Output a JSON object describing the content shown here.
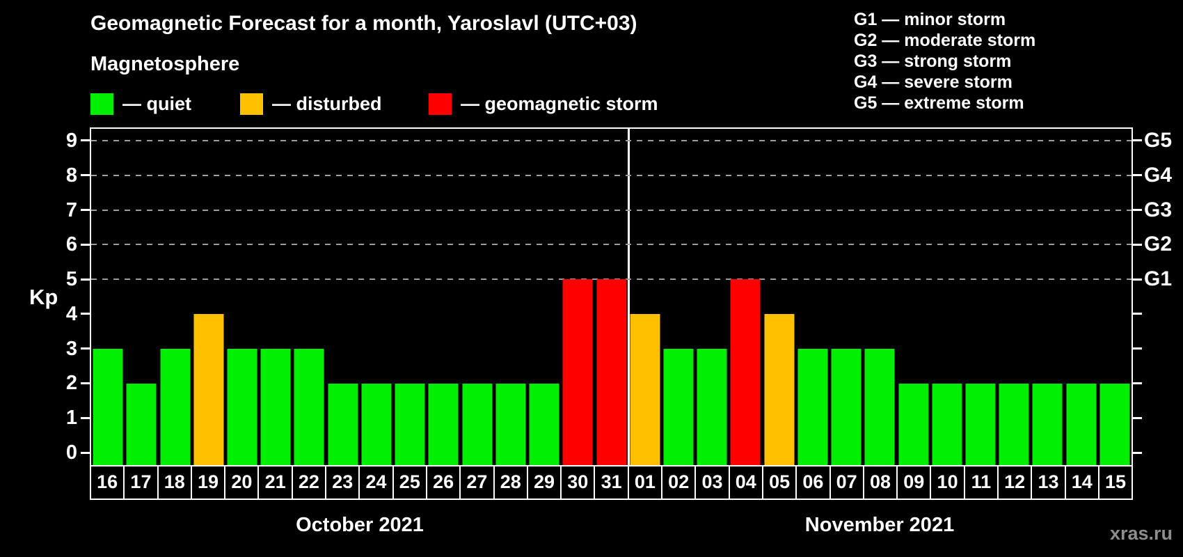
{
  "title": "Geomagnetic Forecast for a month, Yaroslavl (UTC+03)",
  "legend": {
    "heading": "Magnetosphere",
    "items": [
      {
        "name": "quiet",
        "label": "— quiet",
        "color": "#00ee00"
      },
      {
        "name": "disturbed",
        "label": "— disturbed",
        "color": "#ffc000"
      },
      {
        "name": "storm",
        "label": "— geomagnetic storm",
        "color": "#ff0000"
      }
    ]
  },
  "g_legend": [
    "G1 — minor storm",
    "G2 — moderate storm",
    "G3 — strong storm",
    "G4 — severe storm",
    "G5 — extreme storm"
  ],
  "axes": {
    "y_label": "Kp",
    "y_ticks": [
      0,
      1,
      2,
      3,
      4,
      5,
      6,
      7,
      8,
      9
    ],
    "right_labels": [
      {
        "kp": 5,
        "label": "G1"
      },
      {
        "kp": 6,
        "label": "G2"
      },
      {
        "kp": 7,
        "label": "G3"
      },
      {
        "kp": 8,
        "label": "G4"
      },
      {
        "kp": 9,
        "label": "G5"
      }
    ]
  },
  "months": [
    {
      "label": "October 2021"
    },
    {
      "label": "November 2021"
    }
  ],
  "watermark": "xras.ru",
  "chart_data": {
    "type": "bar",
    "title": "Geomagnetic Forecast for a month, Yaroslavl (UTC+03)",
    "xlabel": "",
    "ylabel": "Kp",
    "ylim": [
      0,
      9
    ],
    "grid": "dashed horizontal lines at Kp 5,6,7,8,9 (G1–G5)",
    "legend_position": "top",
    "categories": [
      "16",
      "17",
      "18",
      "19",
      "20",
      "21",
      "22",
      "23",
      "24",
      "25",
      "26",
      "27",
      "28",
      "29",
      "30",
      "31",
      "01",
      "02",
      "03",
      "04",
      "05",
      "06",
      "07",
      "08",
      "09",
      "10",
      "11",
      "12",
      "13",
      "14",
      "15"
    ],
    "month_of_bars": [
      "oct",
      "oct",
      "oct",
      "oct",
      "oct",
      "oct",
      "oct",
      "oct",
      "oct",
      "oct",
      "oct",
      "oct",
      "oct",
      "oct",
      "oct",
      "oct",
      "nov",
      "nov",
      "nov",
      "nov",
      "nov",
      "nov",
      "nov",
      "nov",
      "nov",
      "nov",
      "nov",
      "nov",
      "nov",
      "nov",
      "nov"
    ],
    "month_split_index": 16,
    "values": [
      3,
      2,
      3,
      4,
      3,
      3,
      3,
      2,
      2,
      2,
      2,
      2,
      2,
      2,
      5,
      5,
      4,
      3,
      3,
      5,
      4,
      3,
      3,
      3,
      2,
      2,
      2,
      2,
      2,
      2,
      2
    ],
    "statuses": [
      "quiet",
      "quiet",
      "quiet",
      "disturbed",
      "quiet",
      "quiet",
      "quiet",
      "quiet",
      "quiet",
      "quiet",
      "quiet",
      "quiet",
      "quiet",
      "quiet",
      "storm",
      "storm",
      "disturbed",
      "quiet",
      "quiet",
      "storm",
      "disturbed",
      "quiet",
      "quiet",
      "quiet",
      "quiet",
      "quiet",
      "quiet",
      "quiet",
      "quiet",
      "quiet",
      "quiet"
    ]
  }
}
